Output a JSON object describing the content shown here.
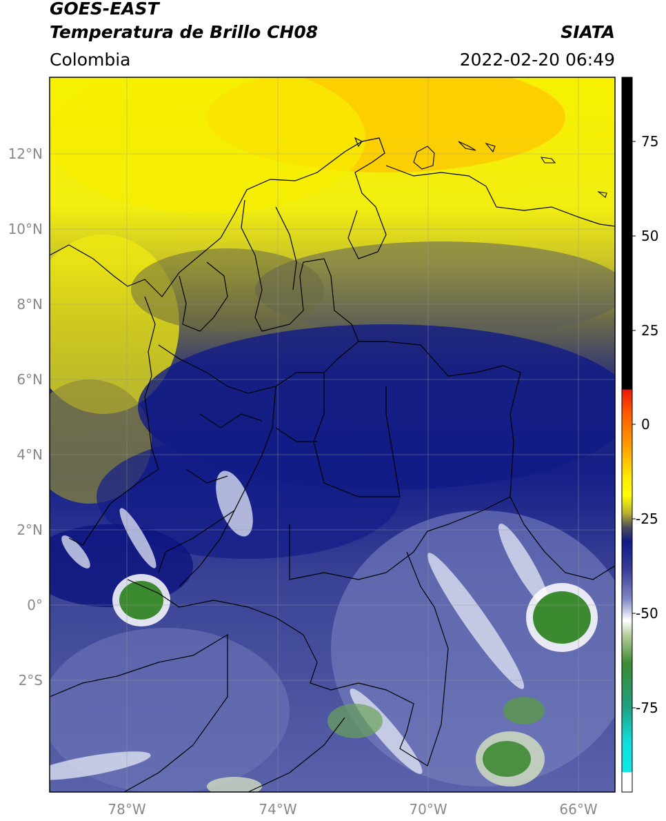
{
  "header": {
    "satellite": "GOES-EAST",
    "product": "Temperatura de Brillo CH08",
    "region": "Colombia",
    "agency": "SIATA",
    "datetime": "2022-02-20 06:49"
  },
  "map": {
    "lat_ticks": [
      "12°N",
      "10°N",
      "8°N",
      "6°N",
      "4°N",
      "2°N",
      "0°",
      "2°S"
    ],
    "lon_ticks": [
      "78°W",
      "74°W",
      "70°W",
      "66°W"
    ],
    "extent_lon": [
      -80,
      -65
    ],
    "extent_lat": [
      -5,
      14
    ]
  },
  "colorbar": {
    "ticks": [
      "75",
      "50",
      "25",
      "0",
      "-25",
      "-50",
      "-75"
    ],
    "colors": {
      "black": "#000000",
      "red": "#e8190c",
      "orange": "#ff8a00",
      "yellow": "#ffff00",
      "olive": "#6e6a3a",
      "navy": "#101a86",
      "lavender": "#aab0dc",
      "white": "#ffffff",
      "green": "#3c8a30",
      "cyan": "#10dede"
    }
  }
}
